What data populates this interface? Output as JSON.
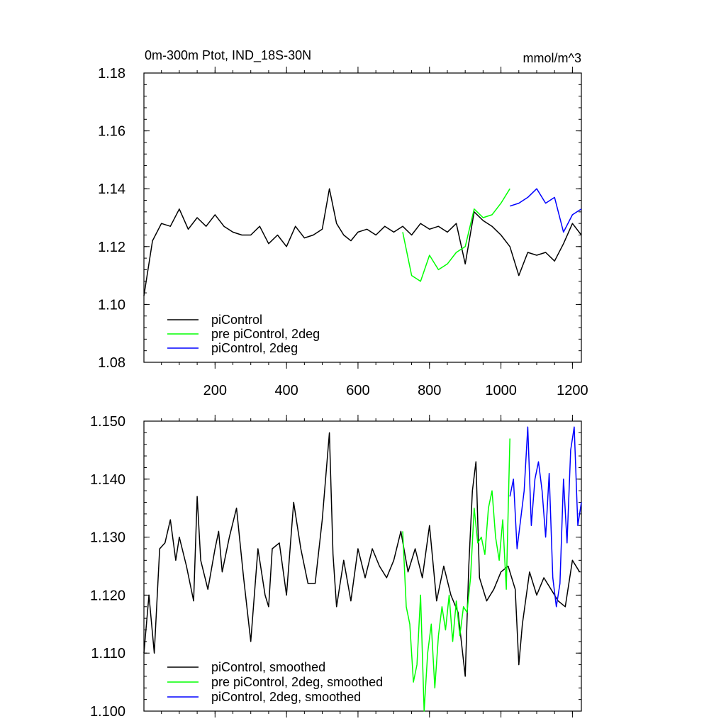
{
  "chart_data": [
    {
      "type": "line",
      "title": "0m-300m Ptot, IND_18S-30N",
      "units": "mmol/m^3",
      "xlim": [
        1,
        1225
      ],
      "ylim": [
        1.08,
        1.18
      ],
      "xticks": [
        200,
        400,
        600,
        800,
        1000,
        1200
      ],
      "xtick_labels": [
        "200",
        "400",
        "600",
        "800",
        "1000",
        "1200"
      ],
      "yticks": [
        1.08,
        1.1,
        1.12,
        1.14,
        1.16,
        1.18
      ],
      "ytick_labels": [
        "1.08",
        "1.10",
        "1.12",
        "1.14",
        "1.16",
        "1.18"
      ],
      "legend": "bottom-left",
      "series": [
        {
          "name": "piControl",
          "color": "#000000",
          "x": [
            1,
            25,
            50,
            75,
            100,
            125,
            150,
            175,
            200,
            225,
            250,
            275,
            300,
            325,
            350,
            375,
            400,
            425,
            450,
            475,
            500,
            520,
            540,
            560,
            580,
            600,
            625,
            650,
            675,
            700,
            725,
            750,
            775,
            800,
            825,
            850,
            875,
            900,
            925,
            950,
            975,
            1000,
            1025,
            1050,
            1075,
            1100,
            1125,
            1150,
            1175,
            1200,
            1225
          ],
          "y": [
            1.103,
            1.122,
            1.128,
            1.127,
            1.133,
            1.126,
            1.13,
            1.127,
            1.131,
            1.127,
            1.125,
            1.124,
            1.124,
            1.127,
            1.121,
            1.124,
            1.12,
            1.127,
            1.123,
            1.124,
            1.126,
            1.14,
            1.128,
            1.124,
            1.122,
            1.125,
            1.126,
            1.124,
            1.127,
            1.125,
            1.127,
            1.124,
            1.128,
            1.126,
            1.127,
            1.125,
            1.128,
            1.114,
            1.132,
            1.129,
            1.127,
            1.124,
            1.12,
            1.11,
            1.118,
            1.117,
            1.118,
            1.115,
            1.121,
            1.128,
            1.124
          ]
        },
        {
          "name": "pre piControl, 2deg",
          "color": "#00ff00",
          "x": [
            725,
            750,
            775,
            800,
            825,
            850,
            875,
            900,
            925,
            950,
            975,
            1000,
            1025
          ],
          "y": [
            1.125,
            1.11,
            1.108,
            1.117,
            1.112,
            1.114,
            1.118,
            1.12,
            1.133,
            1.13,
            1.131,
            1.135,
            1.14
          ]
        },
        {
          "name": "piControl, 2deg",
          "color": "#0000ff",
          "x": [
            1025,
            1050,
            1075,
            1100,
            1125,
            1150,
            1175,
            1200,
            1225
          ],
          "y": [
            1.134,
            1.135,
            1.137,
            1.14,
            1.135,
            1.137,
            1.125,
            1.131,
            1.133
          ]
        }
      ]
    },
    {
      "type": "line",
      "xlim": [
        1,
        1225
      ],
      "ylim": [
        1.1,
        1.15
      ],
      "xticks": [
        200,
        400,
        600,
        800,
        1000,
        1200
      ],
      "yticks": [
        1.1,
        1.11,
        1.12,
        1.13,
        1.14,
        1.15
      ],
      "ytick_labels": [
        "1.100",
        "1.110",
        "1.120",
        "1.130",
        "1.140",
        "1.150"
      ],
      "legend": "bottom-left",
      "series": [
        {
          "name": "piControl, smoothed",
          "color": "#000000",
          "x": [
            1,
            15,
            30,
            45,
            60,
            75,
            90,
            100,
            120,
            140,
            150,
            160,
            180,
            200,
            210,
            220,
            240,
            260,
            280,
            300,
            320,
            340,
            350,
            360,
            380,
            400,
            420,
            440,
            460,
            480,
            500,
            520,
            530,
            540,
            560,
            580,
            600,
            620,
            640,
            660,
            680,
            700,
            720,
            740,
            760,
            780,
            800,
            820,
            840,
            860,
            880,
            900,
            910,
            920,
            930,
            940,
            960,
            980,
            1000,
            1020,
            1040,
            1050,
            1060,
            1080,
            1100,
            1120,
            1140,
            1160,
            1180,
            1200,
            1220
          ],
          "y": [
            1.11,
            1.12,
            1.11,
            1.128,
            1.129,
            1.133,
            1.126,
            1.13,
            1.125,
            1.119,
            1.137,
            1.126,
            1.121,
            1.128,
            1.131,
            1.124,
            1.13,
            1.135,
            1.123,
            1.112,
            1.128,
            1.12,
            1.118,
            1.128,
            1.129,
            1.12,
            1.136,
            1.128,
            1.122,
            1.122,
            1.133,
            1.148,
            1.127,
            1.118,
            1.126,
            1.119,
            1.128,
            1.123,
            1.128,
            1.125,
            1.123,
            1.126,
            1.131,
            1.124,
            1.128,
            1.123,
            1.132,
            1.119,
            1.125,
            1.12,
            1.117,
            1.106,
            1.125,
            1.138,
            1.143,
            1.123,
            1.119,
            1.121,
            1.124,
            1.125,
            1.121,
            1.108,
            1.115,
            1.124,
            1.12,
            1.123,
            1.121,
            1.119,
            1.118,
            1.126,
            1.124
          ]
        },
        {
          "name": "pre piControl, 2deg, smoothed",
          "color": "#00ff00",
          "x": [
            725,
            735,
            745,
            755,
            765,
            775,
            785,
            795,
            805,
            815,
            825,
            835,
            845,
            855,
            865,
            875,
            885,
            895,
            905,
            915,
            925,
            935,
            945,
            955,
            965,
            975,
            985,
            995,
            1005,
            1015,
            1025
          ],
          "y": [
            1.131,
            1.118,
            1.115,
            1.105,
            1.108,
            1.12,
            1.1,
            1.11,
            1.115,
            1.104,
            1.113,
            1.118,
            1.114,
            1.12,
            1.112,
            1.119,
            1.113,
            1.118,
            1.117,
            1.123,
            1.135,
            1.129,
            1.13,
            1.127,
            1.135,
            1.138,
            1.13,
            1.126,
            1.133,
            1.121,
            1.147
          ]
        },
        {
          "name": "piControl, 2deg, smoothed",
          "color": "#0000ff",
          "x": [
            1025,
            1035,
            1045,
            1055,
            1065,
            1075,
            1085,
            1095,
            1105,
            1115,
            1125,
            1135,
            1145,
            1155,
            1165,
            1175,
            1185,
            1195,
            1205,
            1215,
            1225
          ],
          "y": [
            1.137,
            1.14,
            1.128,
            1.133,
            1.138,
            1.149,
            1.132,
            1.14,
            1.143,
            1.138,
            1.13,
            1.141,
            1.123,
            1.118,
            1.122,
            1.14,
            1.129,
            1.145,
            1.149,
            1.132,
            1.136
          ]
        }
      ]
    }
  ]
}
